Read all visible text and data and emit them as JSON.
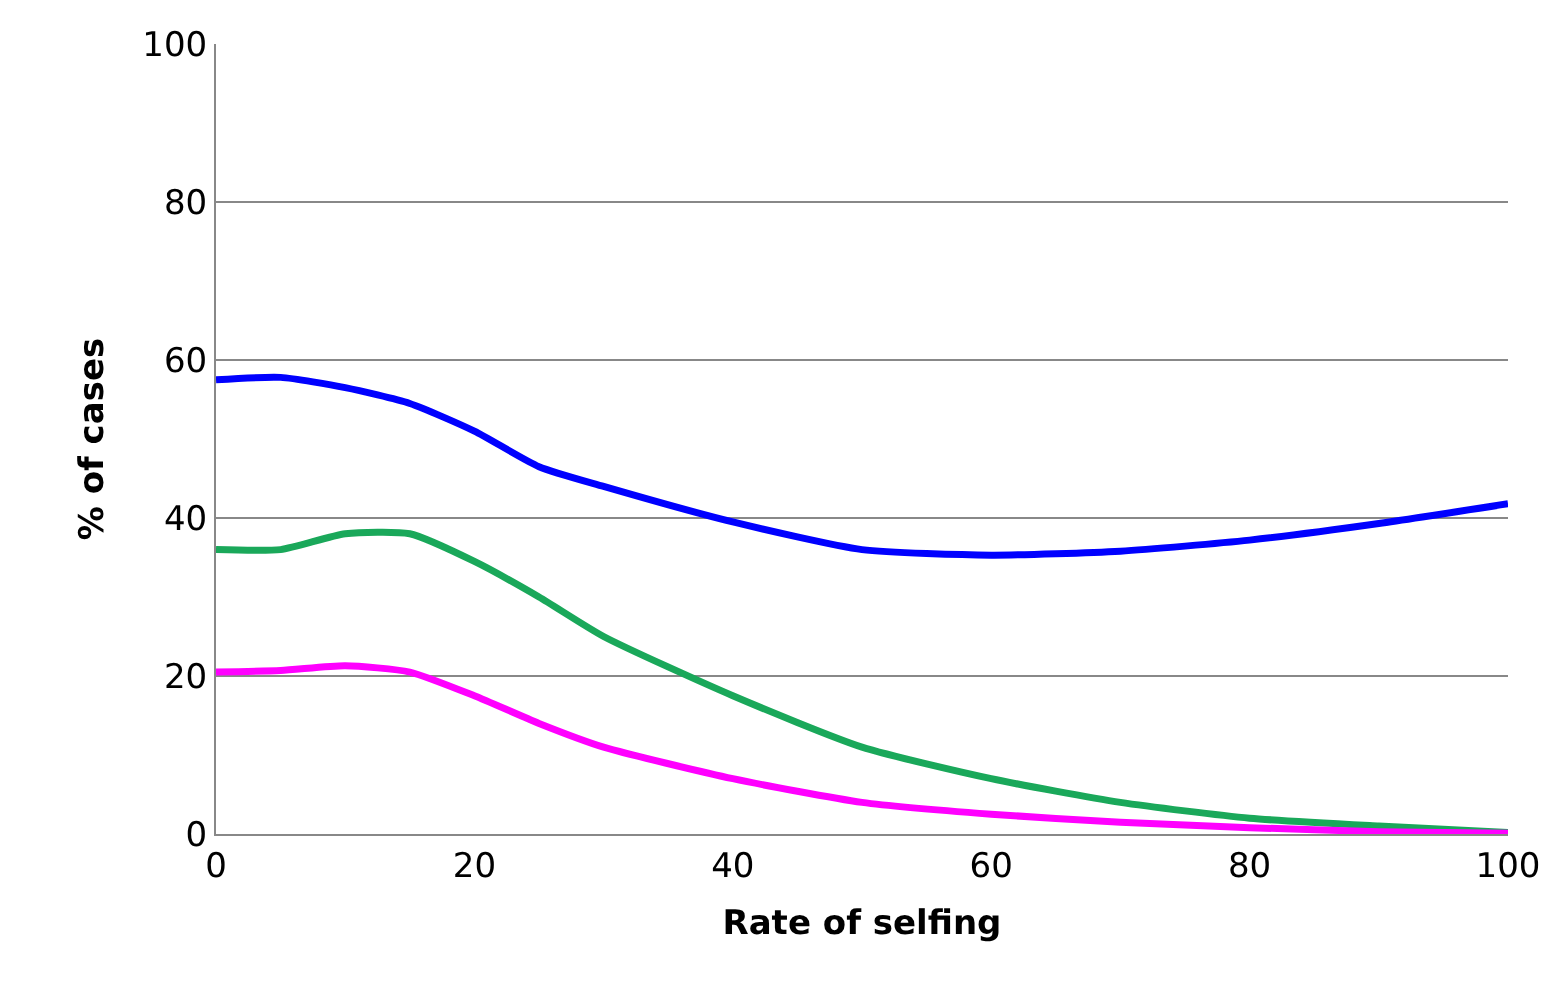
{
  "chart_data": {
    "type": "line",
    "xlabel": "Rate of selfing",
    "ylabel": "% of cases",
    "x": [
      0,
      5,
      10,
      15,
      20,
      25,
      30,
      40,
      50,
      60,
      70,
      80,
      90,
      100
    ],
    "series": [
      {
        "color": "#0000ff",
        "values": [
          57.5,
          57.8,
          56.5,
          54.5,
          51,
          46.5,
          44,
          39.5,
          36,
          35.3,
          35.8,
          37.2,
          39.3,
          41.8
        ]
      },
      {
        "color": "#1aa85a",
        "values": [
          36,
          36,
          38,
          38,
          34.5,
          30,
          25,
          17.5,
          11,
          7,
          4,
          2,
          1,
          0.2
        ]
      },
      {
        "color": "#ff00ff",
        "values": [
          20.5,
          20.7,
          21.3,
          20.5,
          17.5,
          14,
          11,
          7,
          4,
          2.5,
          1.5,
          0.8,
          0.3,
          0.1
        ]
      }
    ],
    "xlim": [
      0,
      100
    ],
    "xticks": [
      0,
      20,
      40,
      60,
      80,
      100
    ],
    "ylim": [
      0,
      100
    ],
    "yticks": [
      0,
      20,
      40,
      60,
      80,
      100
    ],
    "grid": "y",
    "marker": "none",
    "line_style": "solid"
  }
}
